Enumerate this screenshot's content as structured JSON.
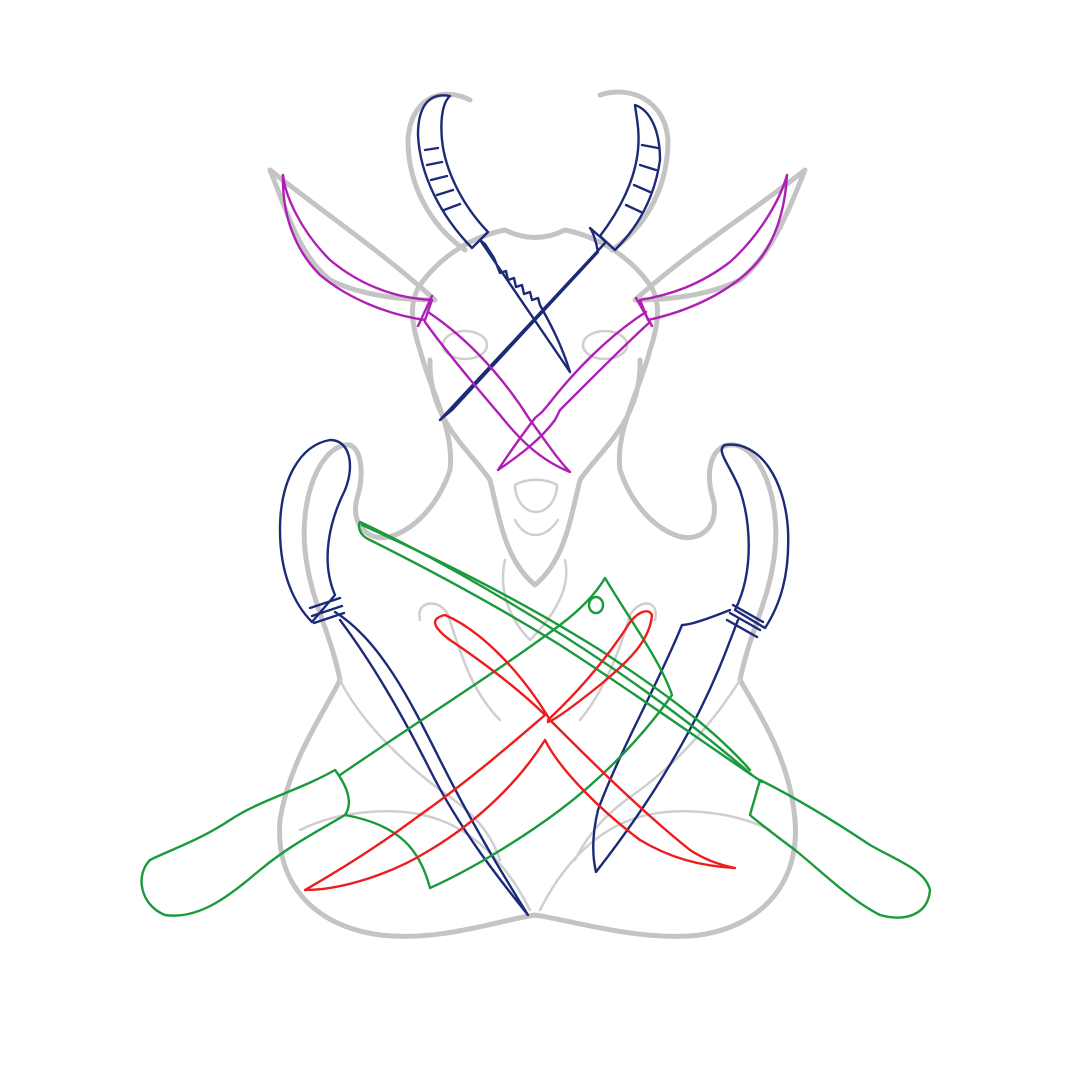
{
  "canvas": {
    "background": "#ffffff"
  },
  "colors": {
    "guide": "#c4c4c4",
    "pattern_fill": "#eef0f6",
    "navy": "#1c2a78",
    "magenta": "#b01fb5",
    "green": "#1a9a3c",
    "red": "#ee1c1c"
  },
  "layers": [
    {
      "name": "goat-guide-sketch",
      "color": "guide"
    },
    {
      "name": "horn-knives",
      "color": "navy"
    },
    {
      "name": "ear-knives",
      "color": "magenta"
    },
    {
      "name": "arm-knives",
      "color": "navy"
    },
    {
      "name": "cleavers",
      "color": "green"
    },
    {
      "name": "center-blades",
      "color": "red"
    }
  ]
}
